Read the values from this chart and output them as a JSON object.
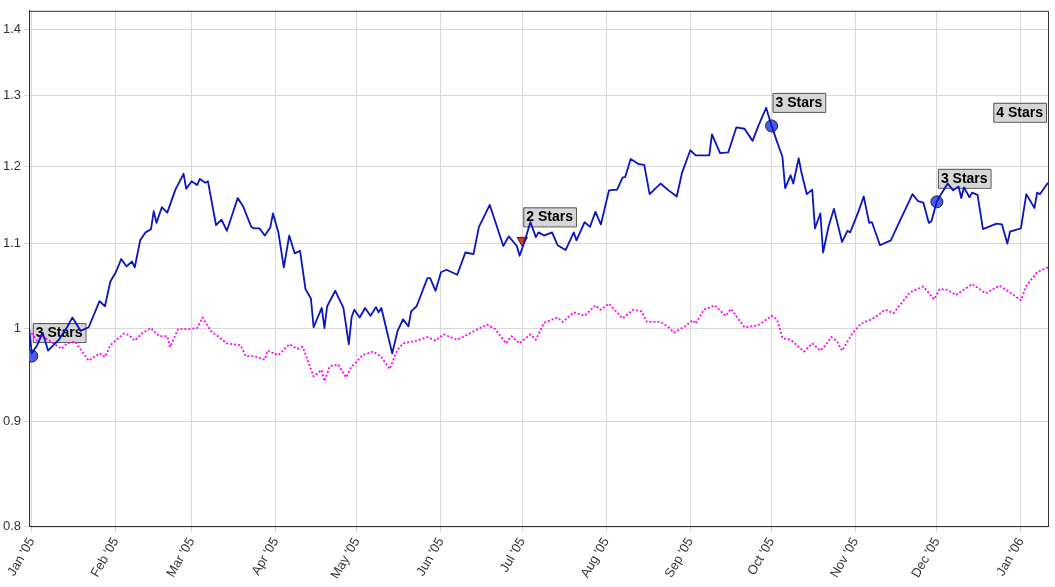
{
  "chart_data": {
    "type": "line",
    "log": "y",
    "grid": true,
    "xlim": [
      "2004-12-31",
      "2006-01-11"
    ],
    "ylim": [
      0.8,
      1.43
    ],
    "xticks": [
      {
        "value": "2005-01-01",
        "label": "Jan '05"
      },
      {
        "value": "2005-02-01",
        "label": "Feb '05"
      },
      {
        "value": "2005-03-01",
        "label": "Mar '05"
      },
      {
        "value": "2005-04-01",
        "label": "Apr '05"
      },
      {
        "value": "2005-05-01",
        "label": "May '05"
      },
      {
        "value": "2005-06-01",
        "label": "Jun '05"
      },
      {
        "value": "2005-07-01",
        "label": "Jul '05"
      },
      {
        "value": "2005-08-01",
        "label": "Aug '05"
      },
      {
        "value": "2005-09-01",
        "label": "Sep '05"
      },
      {
        "value": "2005-10-01",
        "label": "Oct '05"
      },
      {
        "value": "2005-11-01",
        "label": "Nov '05"
      },
      {
        "value": "2005-12-01",
        "label": "Dec '05"
      },
      {
        "value": "2006-01-01",
        "label": "Jan '06"
      }
    ],
    "yticks": [
      0.8,
      0.9,
      1,
      1.1,
      1.2,
      1.3,
      1.4
    ],
    "series": [
      {
        "color": "#0a14c0",
        "marker": "none",
        "line_style": "solid",
        "x": [
          "2004-12-31",
          "2005-01-01",
          "2005-01-03",
          "2005-01-05",
          "2005-01-07",
          "2005-01-09",
          "2005-01-11",
          "2005-01-14",
          "2005-01-16",
          "2005-01-19",
          "2005-01-22",
          "2005-01-26",
          "2005-01-28",
          "2005-01-30",
          "2005-02-01",
          "2005-02-03",
          "2005-02-05",
          "2005-02-07",
          "2005-02-08",
          "2005-02-10",
          "2005-02-12",
          "2005-02-14",
          "2005-02-15",
          "2005-02-16",
          "2005-02-18",
          "2005-02-20",
          "2005-02-23",
          "2005-02-26",
          "2005-02-27",
          "2005-03-01",
          "2005-03-03",
          "2005-03-04",
          "2005-03-06",
          "2005-03-07",
          "2005-03-10",
          "2005-03-12",
          "2005-03-14",
          "2005-03-18",
          "2005-03-20",
          "2005-03-23",
          "2005-03-24",
          "2005-03-26",
          "2005-03-28",
          "2005-03-30",
          "2005-03-31",
          "2005-04-02",
          "2005-04-04",
          "2005-04-06",
          "2005-04-08",
          "2005-04-10",
          "2005-04-12",
          "2005-04-14",
          "2005-04-15",
          "2005-04-18",
          "2005-04-19",
          "2005-04-20",
          "2005-04-23",
          "2005-04-26",
          "2005-04-28",
          "2005-04-29",
          "2005-04-30",
          "2005-05-02",
          "2005-05-04",
          "2005-05-06",
          "2005-05-08",
          "2005-05-09",
          "2005-05-10",
          "2005-05-12",
          "2005-05-14",
          "2005-05-16",
          "2005-05-18",
          "2005-05-20",
          "2005-05-21",
          "2005-05-23",
          "2005-05-27",
          "2005-05-28",
          "2005-05-30",
          "2005-06-01",
          "2005-06-03",
          "2005-06-07",
          "2005-06-10",
          "2005-06-13",
          "2005-06-15",
          "2005-06-19",
          "2005-06-21",
          "2005-06-24",
          "2005-06-26",
          "2005-06-29",
          "2005-06-30",
          "2005-07-02",
          "2005-07-04",
          "2005-07-06",
          "2005-07-07",
          "2005-07-09",
          "2005-07-12",
          "2005-07-14",
          "2005-07-17",
          "2005-07-20",
          "2005-07-21",
          "2005-07-24",
          "2005-07-26",
          "2005-07-28",
          "2005-07-30",
          "2005-08-02",
          "2005-08-05",
          "2005-08-07",
          "2005-08-08",
          "2005-08-10",
          "2005-08-13",
          "2005-08-15",
          "2005-08-17",
          "2005-08-21",
          "2005-08-24",
          "2005-08-27",
          "2005-08-29",
          "2005-09-01",
          "2005-09-03",
          "2005-09-08",
          "2005-09-09",
          "2005-09-12",
          "2005-09-15",
          "2005-09-18",
          "2005-09-21",
          "2005-09-24",
          "2005-09-26",
          "2005-09-29",
          "2005-10-01",
          "2005-10-03",
          "2005-10-05",
          "2005-10-06",
          "2005-10-08",
          "2005-10-09",
          "2005-10-11",
          "2005-10-12",
          "2005-10-14",
          "2005-10-16",
          "2005-10-17",
          "2005-10-19",
          "2005-10-20",
          "2005-10-22",
          "2005-10-24",
          "2005-10-27",
          "2005-10-29",
          "2005-10-30",
          "2005-11-02",
          "2005-11-04",
          "2005-11-06",
          "2005-11-07",
          "2005-11-10",
          "2005-11-14",
          "2005-11-17",
          "2005-11-22",
          "2005-11-24",
          "2005-11-26",
          "2005-11-28",
          "2005-11-29",
          "2005-12-01",
          "2005-12-05",
          "2005-12-07",
          "2005-12-09",
          "2005-12-10",
          "2005-12-11",
          "2005-12-13",
          "2005-12-14",
          "2005-12-16",
          "2005-12-18",
          "2005-12-23",
          "2005-12-25",
          "2005-12-27",
          "2005-12-28",
          "2006-01-01",
          "2006-01-03",
          "2006-01-06",
          "2006-01-07",
          "2006-01-08",
          "2006-01-11"
        ],
        "values": [
          1.0,
          0.972,
          0.981,
          0.995,
          0.975,
          0.981,
          0.987,
          1.001,
          1.012,
          0.997,
          1.001,
          1.031,
          1.025,
          1.054,
          1.065,
          1.081,
          1.072,
          1.078,
          1.071,
          1.104,
          1.114,
          1.118,
          1.141,
          1.126,
          1.146,
          1.139,
          1.169,
          1.19,
          1.17,
          1.18,
          1.175,
          1.183,
          1.178,
          1.18,
          1.123,
          1.13,
          1.116,
          1.158,
          1.147,
          1.121,
          1.119,
          1.119,
          1.11,
          1.12,
          1.138,
          1.114,
          1.071,
          1.11,
          1.088,
          1.091,
          1.045,
          1.034,
          1.001,
          1.023,
          1.0,
          1.025,
          1.043,
          1.023,
          0.982,
          1.012,
          1.021,
          1.012,
          1.023,
          1.014,
          1.024,
          1.018,
          1.023,
          0.997,
          0.972,
          0.997,
          1.01,
          1.002,
          1.019,
          1.025,
          1.058,
          1.058,
          1.043,
          1.065,
          1.068,
          1.062,
          1.089,
          1.087,
          1.121,
          1.149,
          1.128,
          1.097,
          1.109,
          1.097,
          1.085,
          1.104,
          1.127,
          1.108,
          1.114,
          1.11,
          1.114,
          1.098,
          1.092,
          1.114,
          1.104,
          1.127,
          1.121,
          1.14,
          1.124,
          1.168,
          1.169,
          1.185,
          1.186,
          1.21,
          1.203,
          1.202,
          1.163,
          1.177,
          1.168,
          1.16,
          1.192,
          1.222,
          1.215,
          1.215,
          1.244,
          1.218,
          1.219,
          1.254,
          1.252,
          1.235,
          1.255,
          1.282,
          1.256,
          1.234,
          1.213,
          1.171,
          1.188,
          1.177,
          1.211,
          1.192,
          1.163,
          1.169,
          1.119,
          1.138,
          1.089,
          1.121,
          1.144,
          1.102,
          1.116,
          1.114,
          1.14,
          1.16,
          1.126,
          1.127,
          1.098,
          1.104,
          1.126,
          1.163,
          1.154,
          1.152,
          1.126,
          1.128,
          1.154,
          1.177,
          1.168,
          1.173,
          1.158,
          1.172,
          1.159,
          1.165,
          1.162,
          1.118,
          1.125,
          1.124,
          1.1,
          1.115,
          1.119,
          1.163,
          1.145,
          1.165,
          1.163,
          1.178
        ]
      },
      {
        "color": "#ff00ff",
        "marker": "none",
        "line_style": "dotted",
        "x": [
          "2004-12-31",
          "2005-01-03",
          "2005-01-05",
          "2005-01-08",
          "2005-01-12",
          "2005-01-14",
          "2005-01-17",
          "2005-01-22",
          "2005-01-26",
          "2005-01-28",
          "2005-01-30",
          "2005-02-04",
          "2005-02-06",
          "2005-02-08",
          "2005-02-11",
          "2005-02-14",
          "2005-02-17",
          "2005-02-20",
          "2005-02-21",
          "2005-02-24",
          "2005-02-28",
          "2005-03-03",
          "2005-03-05",
          "2005-03-08",
          "2005-03-11",
          "2005-03-14",
          "2005-03-19",
          "2005-03-21",
          "2005-03-24",
          "2005-03-28",
          "2005-03-29",
          "2005-04-02",
          "2005-04-06",
          "2005-04-09",
          "2005-04-11",
          "2005-04-15",
          "2005-04-18",
          "2005-04-19",
          "2005-04-21",
          "2005-04-24",
          "2005-04-27",
          "2005-04-29",
          "2005-04-30",
          "2005-05-03",
          "2005-05-07",
          "2005-05-10",
          "2005-05-13",
          "2005-05-16",
          "2005-05-18",
          "2005-05-23",
          "2005-05-27",
          "2005-05-30",
          "2005-06-02",
          "2005-06-07",
          "2005-06-11",
          "2005-06-14",
          "2005-06-18",
          "2005-06-21",
          "2005-06-25",
          "2005-06-27",
          "2005-06-30",
          "2005-07-04",
          "2005-07-06",
          "2005-07-09",
          "2005-07-14",
          "2005-07-16",
          "2005-07-20",
          "2005-07-24",
          "2005-07-28",
          "2005-07-30",
          "2005-08-02",
          "2005-08-07",
          "2005-08-11",
          "2005-08-14",
          "2005-08-16",
          "2005-08-21",
          "2005-08-24",
          "2005-08-26",
          "2005-08-30",
          "2005-09-02",
          "2005-09-03",
          "2005-09-06",
          "2005-09-10",
          "2005-09-14",
          "2005-09-16",
          "2005-09-21",
          "2005-09-26",
          "2005-10-01",
          "2005-10-03",
          "2005-10-05",
          "2005-10-08",
          "2005-10-13",
          "2005-10-16",
          "2005-10-19",
          "2005-10-21",
          "2005-10-23",
          "2005-10-25",
          "2005-10-27",
          "2005-10-31",
          "2005-11-03",
          "2005-11-07",
          "2005-11-12",
          "2005-11-15",
          "2005-11-21",
          "2005-11-26",
          "2005-11-30",
          "2005-12-02",
          "2005-12-05",
          "2005-12-08",
          "2005-12-14",
          "2005-12-19",
          "2005-12-24",
          "2005-12-28",
          "2006-01-01",
          "2006-01-03",
          "2006-01-07",
          "2006-01-11"
        ],
        "values": [
          0.998,
          0.986,
          0.991,
          0.985,
          0.977,
          0.983,
          0.985,
          0.964,
          0.972,
          0.968,
          0.981,
          0.994,
          0.992,
          0.986,
          0.995,
          1.0,
          0.991,
          0.991,
          0.979,
          0.999,
          0.999,
          1.0,
          1.012,
          0.997,
          0.99,
          0.983,
          0.981,
          0.969,
          0.969,
          0.965,
          0.975,
          0.97,
          0.982,
          0.977,
          0.979,
          0.947,
          0.954,
          0.942,
          0.958,
          0.96,
          0.946,
          0.958,
          0.96,
          0.97,
          0.974,
          0.968,
          0.955,
          0.976,
          0.983,
          0.986,
          0.99,
          0.986,
          0.993,
          0.987,
          0.993,
          0.998,
          1.004,
          0.999,
          0.983,
          0.991,
          0.983,
          0.993,
          0.987,
          1.006,
          1.012,
          1.007,
          1.018,
          1.014,
          1.026,
          1.021,
          1.028,
          1.011,
          1.021,
          1.019,
          1.007,
          1.007,
          1.001,
          0.995,
          1.002,
          1.009,
          1.005,
          1.021,
          1.026,
          1.014,
          1.022,
          1.001,
          1.003,
          1.014,
          1.01,
          0.989,
          0.987,
          0.974,
          0.983,
          0.975,
          0.981,
          0.99,
          0.986,
          0.975,
          0.995,
          1.005,
          1.01,
          1.021,
          1.017,
          1.041,
          1.048,
          1.033,
          1.045,
          1.044,
          1.038,
          1.051,
          1.04,
          1.049,
          1.041,
          1.032,
          1.049,
          1.065,
          1.071
        ]
      },
      {
        "type": "scatter",
        "marker": "circle",
        "color": "#4a5cf0",
        "x": [
          "2005-01-01",
          "2005-10-01",
          "2005-12-01"
        ],
        "values": [
          0.969,
          1.256,
          1.153
        ]
      },
      {
        "type": "scatter",
        "marker": "triangle",
        "color": "#e83030",
        "x": [
          "2005-07-01"
        ],
        "values": [
          1.104
        ]
      }
    ],
    "annotations": [
      {
        "text": "3 Stars",
        "x": "2005-01-01",
        "y": 0.969
      },
      {
        "text": "2 Stars",
        "x": "2005-07-01",
        "y": 1.104
      },
      {
        "text": "3 Stars",
        "x": "2005-10-01",
        "y": 1.256
      },
      {
        "text": "3 Stars",
        "x": "2005-12-01",
        "y": 1.153
      },
      "4 Stars"
    ]
  }
}
